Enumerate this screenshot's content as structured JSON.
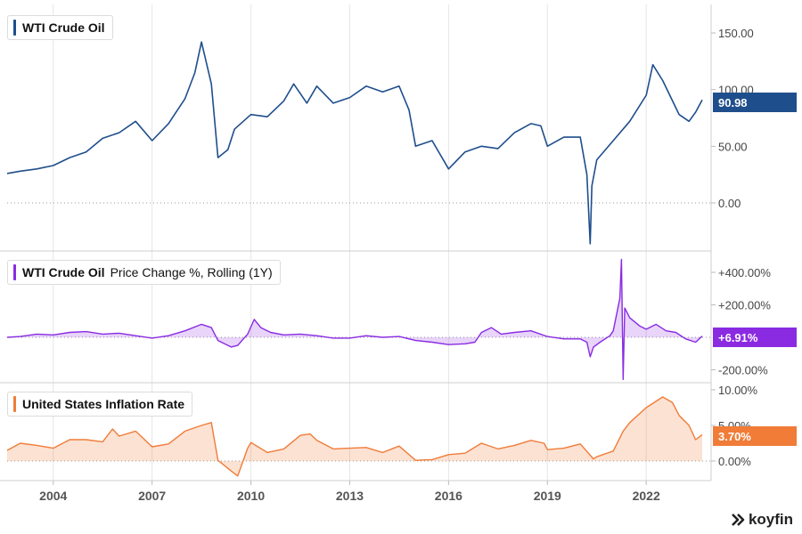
{
  "chart_data": [
    {
      "type": "line",
      "title": "WTI Crude Oil",
      "color": "#1f4e8c",
      "yticks": [
        "150.00",
        "100.00",
        "50.00",
        "0.00"
      ],
      "ylim": [
        -38,
        170
      ],
      "current_value": "90.98",
      "x": [
        2002.6,
        2003.0,
        2003.5,
        2004.0,
        2004.5,
        2005.0,
        2005.5,
        2006.0,
        2006.5,
        2007.0,
        2007.5,
        2008.0,
        2008.3,
        2008.5,
        2008.8,
        2009.0,
        2009.3,
        2009.5,
        2010.0,
        2010.5,
        2011.0,
        2011.3,
        2011.7,
        2012.0,
        2012.5,
        2013.0,
        2013.5,
        2014.0,
        2014.5,
        2014.8,
        2015.0,
        2015.5,
        2016.0,
        2016.5,
        2017.0,
        2017.5,
        2018.0,
        2018.5,
        2018.8,
        2019.0,
        2019.5,
        2020.0,
        2020.2,
        2020.3,
        2020.35,
        2020.5,
        2021.0,
        2021.5,
        2022.0,
        2022.2,
        2022.5,
        2022.8,
        2023.0,
        2023.3,
        2023.5,
        2023.7
      ],
      "values": [
        26,
        28,
        30,
        33,
        40,
        45,
        57,
        62,
        72,
        55,
        70,
        92,
        115,
        142,
        105,
        40,
        47,
        65,
        78,
        76,
        90,
        105,
        88,
        103,
        88,
        93,
        103,
        98,
        103,
        82,
        50,
        55,
        30,
        45,
        50,
        48,
        62,
        70,
        68,
        50,
        58,
        58,
        25,
        -36,
        15,
        38,
        55,
        72,
        95,
        122,
        108,
        90,
        78,
        72,
        80,
        90.98
      ]
    },
    {
      "type": "area",
      "title": "WTI Crude Oil",
      "subtitle": "Price Change %, Rolling (1Y)",
      "color": "#8a2be2",
      "yticks": [
        "+400.00%",
        "+200.00%",
        "-200.00%"
      ],
      "ylim": [
        -280,
        520
      ],
      "current_value": "+6.91%",
      "x": [
        2002.6,
        2003.0,
        2003.5,
        2004.0,
        2004.5,
        2005.0,
        2005.5,
        2006.0,
        2006.5,
        2007.0,
        2007.5,
        2008.0,
        2008.5,
        2008.8,
        2009.0,
        2009.4,
        2009.6,
        2009.9,
        2010.1,
        2010.3,
        2010.6,
        2011.0,
        2011.5,
        2012.0,
        2012.5,
        2013.0,
        2013.5,
        2014.0,
        2014.5,
        2015.0,
        2015.5,
        2016.0,
        2016.5,
        2016.8,
        2017.0,
        2017.3,
        2017.6,
        2018.0,
        2018.5,
        2019.0,
        2019.5,
        2020.0,
        2020.2,
        2020.3,
        2020.4,
        2020.6,
        2020.9,
        2021.0,
        2021.2,
        2021.25,
        2021.3,
        2021.35,
        2021.5,
        2021.8,
        2022.0,
        2022.3,
        2022.6,
        2022.9,
        2023.2,
        2023.5,
        2023.7
      ],
      "values": [
        0,
        5,
        20,
        15,
        30,
        35,
        20,
        25,
        10,
        -5,
        10,
        40,
        80,
        60,
        -20,
        -60,
        -50,
        20,
        110,
        60,
        30,
        15,
        20,
        10,
        -5,
        -5,
        10,
        0,
        5,
        -20,
        -30,
        -45,
        -40,
        -30,
        30,
        60,
        20,
        30,
        40,
        5,
        -10,
        -10,
        -30,
        -120,
        -60,
        -30,
        10,
        40,
        240,
        480,
        -260,
        180,
        120,
        70,
        50,
        80,
        40,
        30,
        -10,
        -30,
        6.91
      ]
    },
    {
      "type": "area",
      "title": "United States Inflation Rate",
      "color": "#f07c38",
      "yticks": [
        "10.00%",
        "5.00%",
        "0.00%"
      ],
      "ylim": [
        -2.5,
        10.8
      ],
      "current_value": "3.70%",
      "x": [
        2002.6,
        2003.0,
        2003.5,
        2004.0,
        2004.5,
        2005.0,
        2005.5,
        2005.8,
        2006.0,
        2006.5,
        2007.0,
        2007.5,
        2008.0,
        2008.5,
        2008.8,
        2009.0,
        2009.4,
        2009.6,
        2009.9,
        2010.0,
        2010.5,
        2011.0,
        2011.5,
        2011.8,
        2012.0,
        2012.5,
        2013.0,
        2013.5,
        2014.0,
        2014.5,
        2015.0,
        2015.5,
        2016.0,
        2016.5,
        2017.0,
        2017.5,
        2018.0,
        2018.5,
        2018.9,
        2019.0,
        2019.5,
        2020.0,
        2020.4,
        2020.5,
        2021.0,
        2021.3,
        2021.5,
        2022.0,
        2022.5,
        2022.8,
        2023.0,
        2023.3,
        2023.5,
        2023.7
      ],
      "values": [
        1.5,
        2.5,
        2.2,
        1.8,
        3.0,
        3.0,
        2.7,
        4.5,
        3.5,
        4.2,
        2.0,
        2.4,
        4.2,
        5.0,
        5.4,
        0.1,
        -1.4,
        -2.1,
        1.8,
        2.6,
        1.2,
        1.7,
        3.6,
        3.8,
        2.9,
        1.7,
        1.8,
        1.9,
        1.2,
        2.1,
        0.1,
        0.2,
        0.9,
        1.1,
        2.5,
        1.7,
        2.2,
        2.9,
        2.5,
        1.6,
        1.8,
        2.4,
        0.3,
        0.6,
        1.4,
        4.2,
        5.4,
        7.5,
        9.0,
        8.2,
        6.4,
        5.0,
        3.0,
        3.7
      ]
    }
  ],
  "x_axis": {
    "labels": [
      "2004",
      "2007",
      "2010",
      "2013",
      "2016",
      "2019",
      "2022"
    ],
    "label_positions": [
      2004,
      2007,
      2010,
      2013,
      2016,
      2019,
      2022
    ],
    "xlim": [
      2002.6,
      2023.97
    ]
  },
  "brand": {
    "name": "koyfin"
  }
}
